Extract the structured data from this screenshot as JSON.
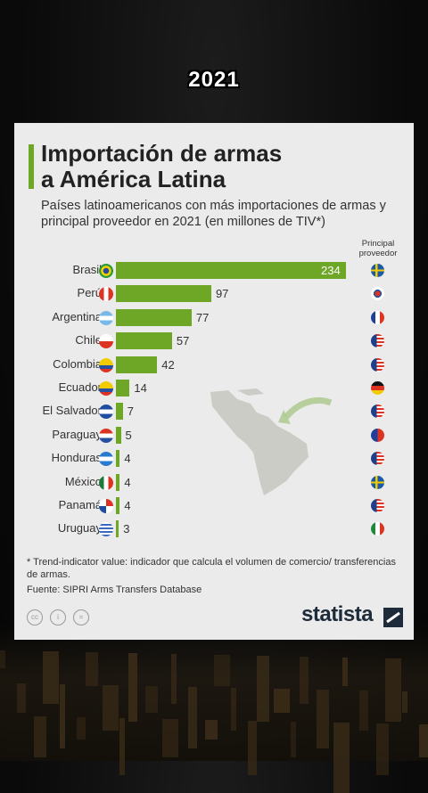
{
  "year_label": "2021",
  "title_line1": "Importación de armas",
  "title_line2": "a América Latina",
  "subtitle": "Países latinoamericanos con más importaciones de armas y principal proveedor en 2021 (en millones de TIV*)",
  "provider_header": "Principal proveedor",
  "footnote": "* Trend-indicator value: indicador que calcula el volumen de comercio/ transferencias de armas.",
  "source": "Fuente: SIPRI Arms Transfers Database",
  "brand": "statista",
  "chart_data": {
    "type": "bar",
    "orientation": "horizontal",
    "title": "Importación de armas a América Latina",
    "categories": [
      "Brasil",
      "Perú",
      "Argentina",
      "Chile",
      "Colombia",
      "Ecuador",
      "El Salvador",
      "Paraguay",
      "Honduras",
      "México",
      "Panamá",
      "Uruguay"
    ],
    "values": [
      234,
      97,
      77,
      57,
      42,
      14,
      7,
      5,
      4,
      4,
      4,
      3
    ],
    "country_flags": [
      "brazil",
      "peru",
      "argentina",
      "chile",
      "colombia",
      "ecuador",
      "el-salvador",
      "paraguay",
      "honduras",
      "mexico",
      "panama",
      "uruguay"
    ],
    "main_supplier_flags": [
      "sweden",
      "south-korea",
      "france",
      "usa",
      "usa",
      "germany",
      "usa",
      "taiwan",
      "usa",
      "sweden",
      "usa",
      "italy"
    ],
    "xlim": [
      0,
      234
    ],
    "color": "#6ea726"
  }
}
